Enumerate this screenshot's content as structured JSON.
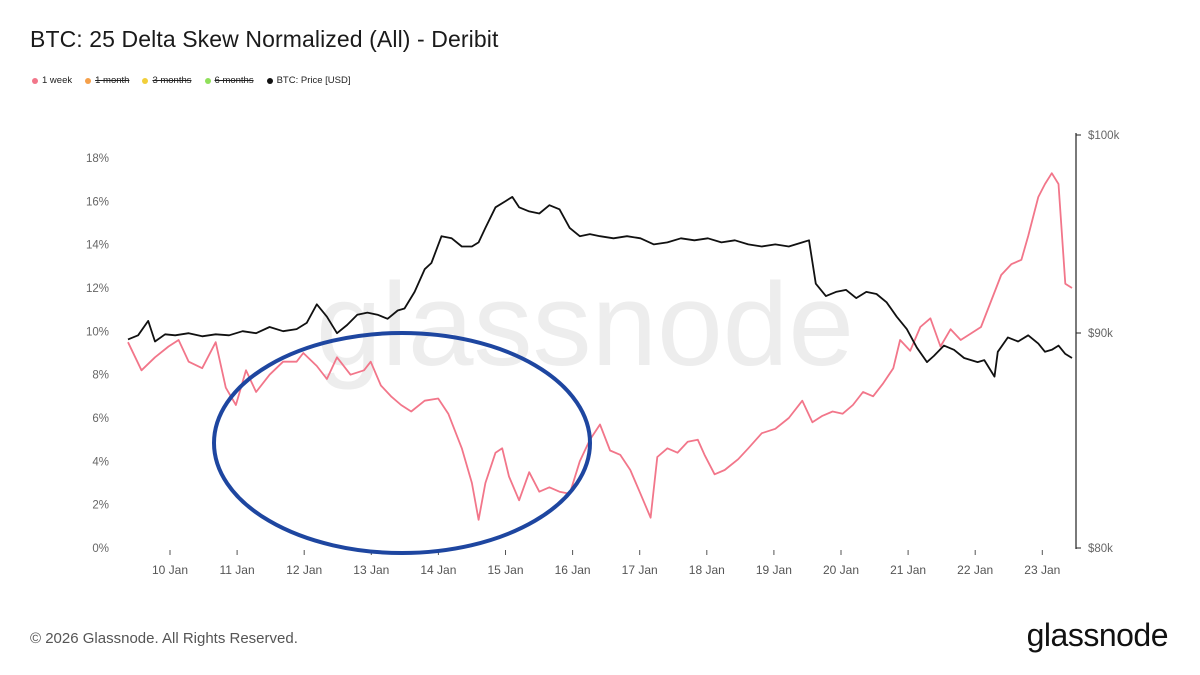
{
  "title": "BTC: 25 Delta Skew Normalized (All) - Deribit",
  "legend": [
    {
      "label": "1 week",
      "color": "#f2768a",
      "active": true
    },
    {
      "label": "1 month",
      "color": "#f5a04a",
      "active": false
    },
    {
      "label": "3 months",
      "color": "#f2cf3a",
      "active": false
    },
    {
      "label": "6 months",
      "color": "#8fe05a",
      "active": false
    },
    {
      "label": "BTC: Price [USD]",
      "color": "#111111",
      "active": true
    }
  ],
  "watermark": "glassnode",
  "footer": {
    "copyright": "© 2026 Glassnode. All Rights Reserved.",
    "logo": "glassnode"
  },
  "annotation": {
    "shape": "ellipse",
    "color": "#1e46a0",
    "note": "circled period of low skew"
  },
  "chart_data": {
    "type": "line",
    "x_tick_labels": [
      "10 Jan",
      "11 Jan",
      "12 Jan",
      "13 Jan",
      "14 Jan",
      "15 Jan",
      "16 Jan",
      "17 Jan",
      "18 Jan",
      "19 Jan",
      "20 Jan",
      "21 Jan",
      "22 Jan",
      "23 Jan"
    ],
    "xlim": [
      9.4,
      23.4
    ],
    "y_left": {
      "ticks": [
        "0%",
        "2%",
        "4%",
        "6%",
        "8%",
        "10%",
        "12%",
        "14%",
        "16%",
        "18%"
      ],
      "lim": [
        0,
        18
      ]
    },
    "y_right": {
      "ticks": [
        "$80k",
        "$90k",
        "$100k"
      ],
      "lim": [
        80000,
        100000
      ]
    },
    "grid": false,
    "series": [
      {
        "name": "1 week",
        "axis": "left",
        "color": "#f2768a",
        "points": [
          [
            9.4,
            9.5
          ],
          [
            9.6,
            8.2
          ],
          [
            9.8,
            8.8
          ],
          [
            10.0,
            9.3
          ],
          [
            10.15,
            9.6
          ],
          [
            10.3,
            8.6
          ],
          [
            10.5,
            8.3
          ],
          [
            10.7,
            9.5
          ],
          [
            10.85,
            7.4
          ],
          [
            11.0,
            6.6
          ],
          [
            11.15,
            8.2
          ],
          [
            11.3,
            7.2
          ],
          [
            11.5,
            8.0
          ],
          [
            11.7,
            8.6
          ],
          [
            11.9,
            8.6
          ],
          [
            12.0,
            9.0
          ],
          [
            12.2,
            8.4
          ],
          [
            12.35,
            7.8
          ],
          [
            12.5,
            8.8
          ],
          [
            12.7,
            8.0
          ],
          [
            12.9,
            8.2
          ],
          [
            13.0,
            8.6
          ],
          [
            13.15,
            7.5
          ],
          [
            13.3,
            7.0
          ],
          [
            13.45,
            6.6
          ],
          [
            13.6,
            6.3
          ],
          [
            13.8,
            6.8
          ],
          [
            14.0,
            6.9
          ],
          [
            14.15,
            6.2
          ],
          [
            14.35,
            4.6
          ],
          [
            14.5,
            3.0
          ],
          [
            14.6,
            1.3
          ],
          [
            14.7,
            3.0
          ],
          [
            14.85,
            4.4
          ],
          [
            14.95,
            4.6
          ],
          [
            15.05,
            3.3
          ],
          [
            15.2,
            2.2
          ],
          [
            15.35,
            3.5
          ],
          [
            15.5,
            2.6
          ],
          [
            15.65,
            2.8
          ],
          [
            15.8,
            2.6
          ],
          [
            15.95,
            2.5
          ],
          [
            16.1,
            4.0
          ],
          [
            16.25,
            5.0
          ],
          [
            16.4,
            5.7
          ],
          [
            16.55,
            4.5
          ],
          [
            16.7,
            4.3
          ],
          [
            16.85,
            3.6
          ],
          [
            17.0,
            2.5
          ],
          [
            17.15,
            1.4
          ],
          [
            17.25,
            4.2
          ],
          [
            17.4,
            4.6
          ],
          [
            17.55,
            4.4
          ],
          [
            17.7,
            4.9
          ],
          [
            17.85,
            5.0
          ],
          [
            17.95,
            4.3
          ],
          [
            18.1,
            3.4
          ],
          [
            18.25,
            3.6
          ],
          [
            18.45,
            4.1
          ],
          [
            18.6,
            4.6
          ],
          [
            18.8,
            5.3
          ],
          [
            19.0,
            5.5
          ],
          [
            19.2,
            6.0
          ],
          [
            19.4,
            6.8
          ],
          [
            19.55,
            5.8
          ],
          [
            19.7,
            6.1
          ],
          [
            19.85,
            6.3
          ],
          [
            20.0,
            6.2
          ],
          [
            20.15,
            6.6
          ],
          [
            20.3,
            7.2
          ],
          [
            20.45,
            7.0
          ],
          [
            20.6,
            7.6
          ],
          [
            20.75,
            8.3
          ],
          [
            20.85,
            9.6
          ],
          [
            21.0,
            9.1
          ],
          [
            21.15,
            10.2
          ],
          [
            21.3,
            10.6
          ],
          [
            21.45,
            9.3
          ],
          [
            21.6,
            10.1
          ],
          [
            21.75,
            9.6
          ],
          [
            21.9,
            9.9
          ],
          [
            22.05,
            10.2
          ],
          [
            22.2,
            11.4
          ],
          [
            22.35,
            12.6
          ],
          [
            22.5,
            13.1
          ],
          [
            22.65,
            13.3
          ],
          [
            22.75,
            14.4
          ],
          [
            22.9,
            16.2
          ],
          [
            23.0,
            16.8
          ],
          [
            23.1,
            17.3
          ],
          [
            23.2,
            16.8
          ],
          [
            23.3,
            12.2
          ],
          [
            23.4,
            12.0
          ]
        ]
      },
      {
        "name": "BTC: Price [USD]",
        "axis": "right",
        "color": "#111111",
        "points": [
          [
            9.4,
            90100
          ],
          [
            9.55,
            90300
          ],
          [
            9.7,
            91000
          ],
          [
            9.8,
            90000
          ],
          [
            9.95,
            90350
          ],
          [
            10.1,
            90300
          ],
          [
            10.3,
            90400
          ],
          [
            10.5,
            90250
          ],
          [
            10.7,
            90350
          ],
          [
            10.9,
            90300
          ],
          [
            11.1,
            90500
          ],
          [
            11.3,
            90400
          ],
          [
            11.5,
            90700
          ],
          [
            11.7,
            90500
          ],
          [
            11.9,
            90600
          ],
          [
            12.05,
            90900
          ],
          [
            12.2,
            91800
          ],
          [
            12.35,
            91200
          ],
          [
            12.5,
            90400
          ],
          [
            12.65,
            90800
          ],
          [
            12.8,
            91300
          ],
          [
            12.95,
            91400
          ],
          [
            13.1,
            91300
          ],
          [
            13.25,
            91100
          ],
          [
            13.4,
            91500
          ],
          [
            13.5,
            91600
          ],
          [
            13.65,
            92400
          ],
          [
            13.8,
            93500
          ],
          [
            13.9,
            93800
          ],
          [
            14.05,
            95100
          ],
          [
            14.2,
            95000
          ],
          [
            14.35,
            94600
          ],
          [
            14.5,
            94600
          ],
          [
            14.6,
            94800
          ],
          [
            14.7,
            95500
          ],
          [
            14.85,
            96500
          ],
          [
            15.0,
            96800
          ],
          [
            15.1,
            97000
          ],
          [
            15.2,
            96500
          ],
          [
            15.35,
            96300
          ],
          [
            15.5,
            96200
          ],
          [
            15.65,
            96600
          ],
          [
            15.8,
            96400
          ],
          [
            15.95,
            95500
          ],
          [
            16.1,
            95100
          ],
          [
            16.25,
            95200
          ],
          [
            16.4,
            95100
          ],
          [
            16.6,
            95000
          ],
          [
            16.8,
            95100
          ],
          [
            17.0,
            95000
          ],
          [
            17.2,
            94700
          ],
          [
            17.4,
            94800
          ],
          [
            17.6,
            95000
          ],
          [
            17.8,
            94900
          ],
          [
            18.0,
            95000
          ],
          [
            18.2,
            94800
          ],
          [
            18.4,
            94900
          ],
          [
            18.6,
            94700
          ],
          [
            18.8,
            94600
          ],
          [
            19.0,
            94700
          ],
          [
            19.2,
            94600
          ],
          [
            19.4,
            94800
          ],
          [
            19.5,
            94900
          ],
          [
            19.6,
            92800
          ],
          [
            19.75,
            92200
          ],
          [
            19.9,
            92400
          ],
          [
            20.05,
            92500
          ],
          [
            20.2,
            92100
          ],
          [
            20.35,
            92400
          ],
          [
            20.5,
            92300
          ],
          [
            20.65,
            91900
          ],
          [
            20.8,
            91200
          ],
          [
            20.95,
            90600
          ],
          [
            21.1,
            89700
          ],
          [
            21.25,
            89000
          ],
          [
            21.35,
            89300
          ],
          [
            21.5,
            89800
          ],
          [
            21.65,
            89600
          ],
          [
            21.8,
            89200
          ],
          [
            22.0,
            89000
          ],
          [
            22.1,
            89100
          ],
          [
            22.25,
            88300
          ],
          [
            22.3,
            89500
          ],
          [
            22.45,
            90200
          ],
          [
            22.6,
            90000
          ],
          [
            22.75,
            90300
          ],
          [
            22.9,
            89900
          ],
          [
            23.0,
            89500
          ],
          [
            23.1,
            89600
          ],
          [
            23.2,
            89800
          ],
          [
            23.3,
            89400
          ],
          [
            23.4,
            89200
          ]
        ]
      }
    ]
  }
}
